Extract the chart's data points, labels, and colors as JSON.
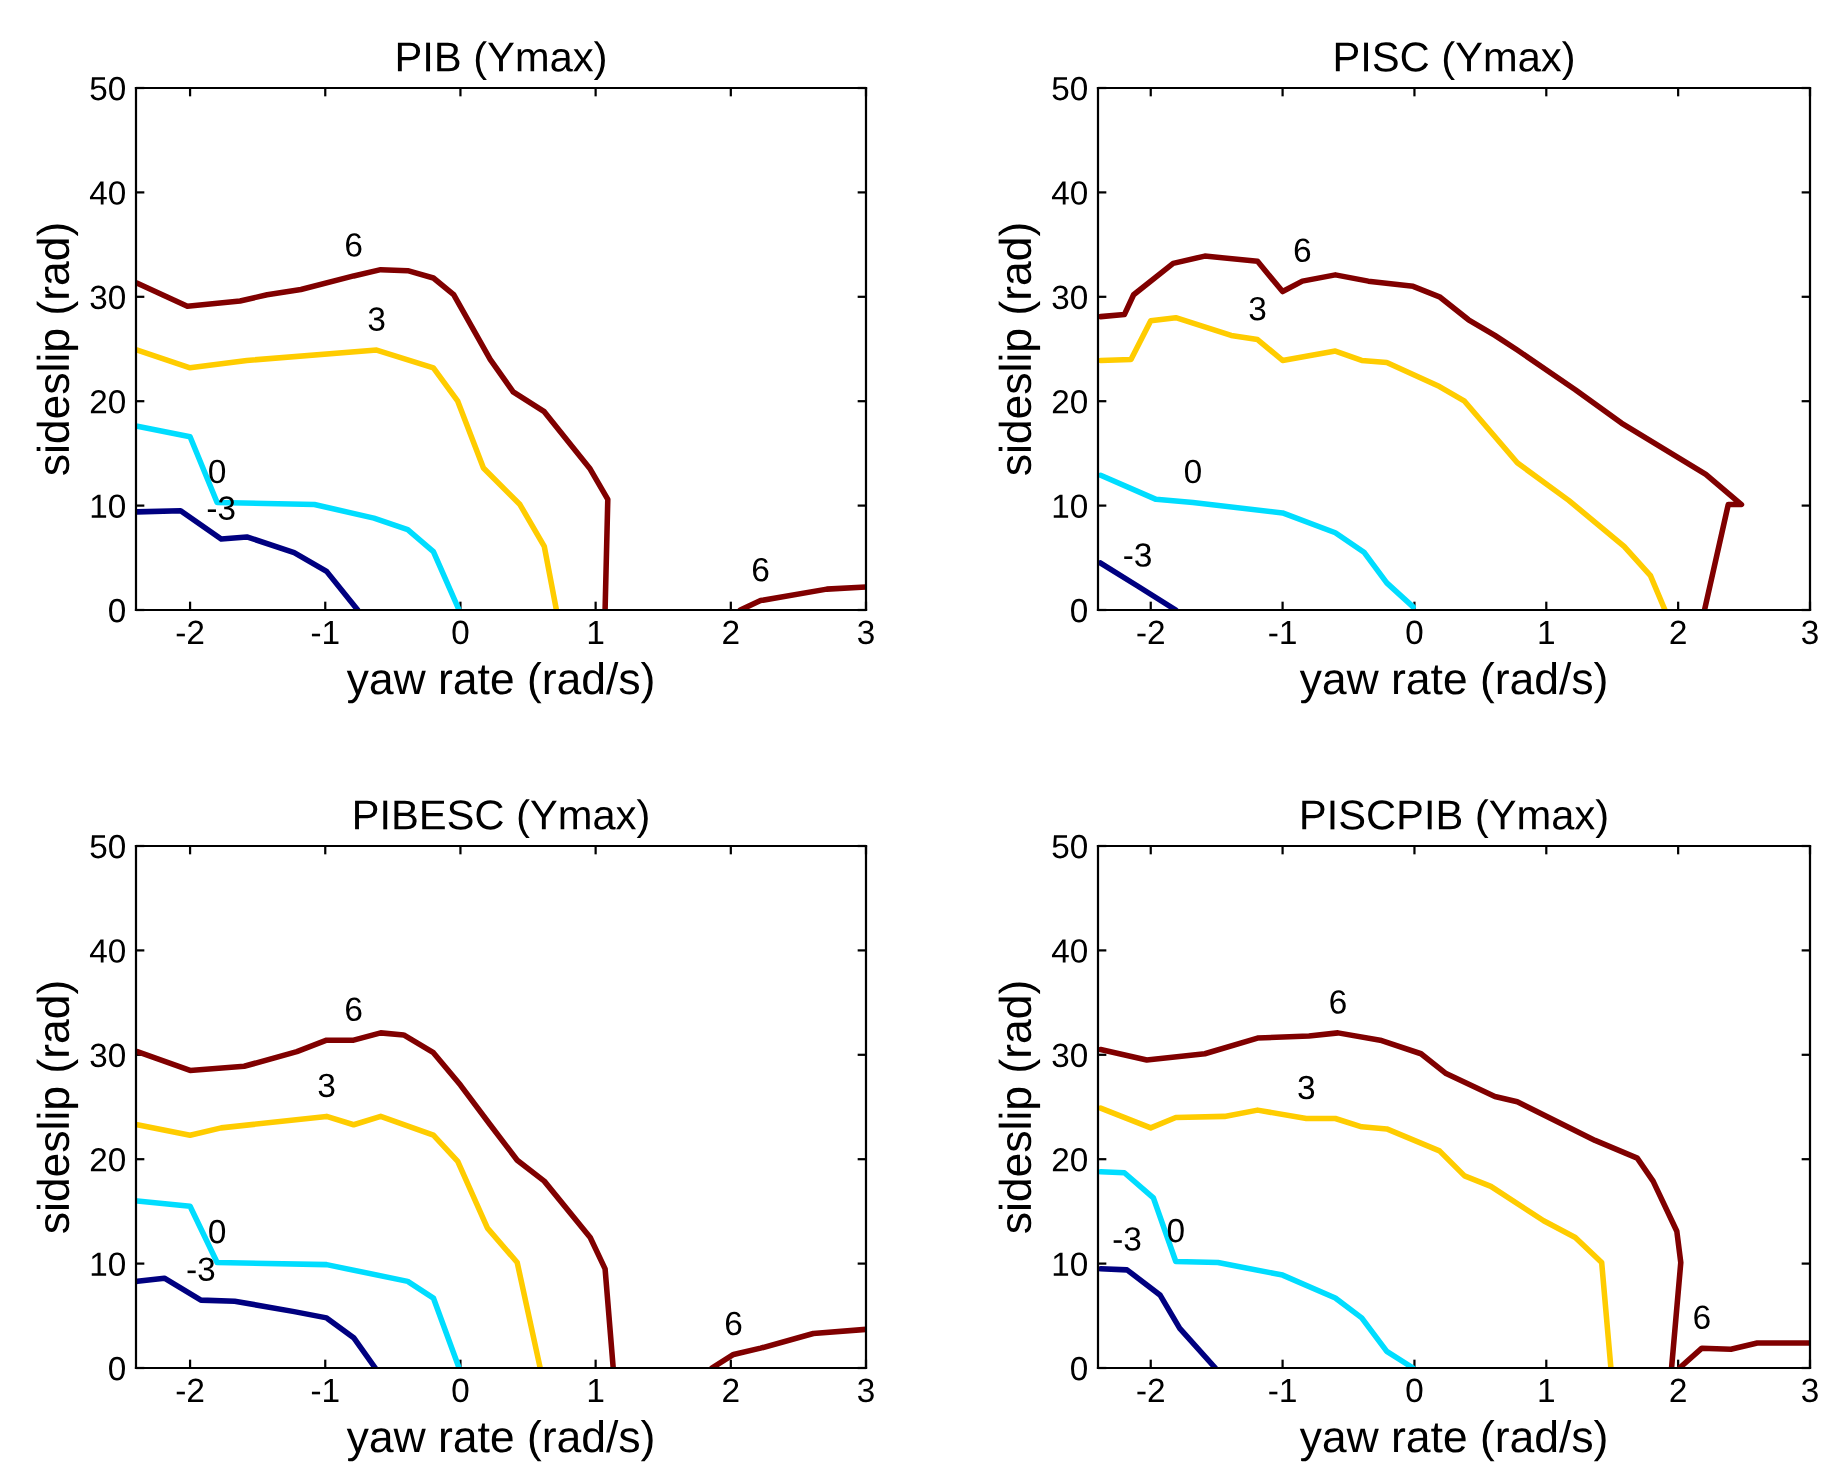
{
  "chart_data": [
    {
      "type": "line",
      "title": "PIB (Ymax)",
      "xlabel": "yaw rate (rad/s)",
      "ylabel": "sideslip (rad)",
      "xlim": [
        -2.4,
        3
      ],
      "xticks": [
        -2,
        -1,
        0,
        1,
        2,
        3
      ],
      "ylim": [
        0,
        50
      ],
      "yticks": [
        0,
        10,
        20,
        30,
        40,
        50
      ],
      "grid": false,
      "legend": false,
      "series": [
        {
          "name": "6",
          "color": "#800000",
          "x": [
            -2.39,
            -2.02,
            -1.63,
            -1.43,
            -1.18,
            -0.79,
            -0.59,
            -0.39,
            -0.2,
            -0.05,
            0.22,
            0.39,
            0.62,
            0.96,
            1.09,
            1.07,
            null,
            2.07,
            2.22,
            2.71,
            3.0
          ],
          "values": [
            31.3,
            29.1,
            29.6,
            30.2,
            30.7,
            32.0,
            32.6,
            32.5,
            31.8,
            30.2,
            24.0,
            20.9,
            19.0,
            13.5,
            10.6,
            0,
            null,
            0,
            0.9,
            2.0,
            2.2
          ]
        },
        {
          "name": "3",
          "color": "#ffcc00",
          "x": [
            -2.39,
            -2.0,
            -1.58,
            -0.62,
            -0.2,
            -0.02,
            0.17,
            0.44,
            0.62,
            0.71
          ],
          "values": [
            24.9,
            23.2,
            23.9,
            24.9,
            23.2,
            20.0,
            13.6,
            10.1,
            6.1,
            0
          ]
        },
        {
          "name": "0",
          "color": "#00ddff",
          "x": [
            -2.39,
            -2.0,
            -1.8,
            -1.08,
            -0.64,
            -0.39,
            -0.2,
            -0.01
          ],
          "values": [
            17.6,
            16.6,
            10.3,
            10.1,
            8.8,
            7.7,
            5.6,
            0
          ]
        },
        {
          "name": "-3",
          "color": "#000080",
          "x": [
            -2.39,
            -2.07,
            -1.77,
            -1.58,
            -1.23,
            -0.99,
            -0.76
          ],
          "values": [
            9.4,
            9.5,
            6.8,
            7.0,
            5.5,
            3.7,
            0
          ]
        }
      ]
    },
    {
      "type": "line",
      "title": "PISC (Ymax)",
      "xlabel": "yaw rate (rad/s)",
      "ylabel": "sideslip (rad)",
      "xlim": [
        -2.4,
        3
      ],
      "xticks": [
        -2,
        -1,
        0,
        1,
        2,
        3
      ],
      "ylim": [
        0,
        50
      ],
      "yticks": [
        0,
        10,
        20,
        30,
        40,
        50
      ],
      "grid": false,
      "legend": false,
      "series": [
        {
          "name": "6",
          "color": "#800000",
          "x": [
            -2.38,
            -2.2,
            -2.13,
            -1.83,
            -1.59,
            -1.19,
            -1.0,
            -0.85,
            -0.6,
            -0.35,
            -0.01,
            0.19,
            0.41,
            0.61,
            0.78,
            1.22,
            1.57,
            2.21,
            2.48,
            2.38,
            2.2
          ],
          "values": [
            28.1,
            28.3,
            30.2,
            33.2,
            33.9,
            33.4,
            30.5,
            31.5,
            32.1,
            31.5,
            31.0,
            30.0,
            27.8,
            26.3,
            24.9,
            21.1,
            17.9,
            13.0,
            10.1,
            10.1,
            0
          ]
        },
        {
          "name": "3",
          "color": "#ffcc00",
          "x": [
            -2.38,
            -2.15,
            -2.0,
            -1.81,
            -1.39,
            -1.19,
            -1.0,
            -0.6,
            -0.4,
            -0.21,
            0.19,
            0.38,
            0.78,
            1.17,
            1.59,
            1.79,
            1.9
          ],
          "values": [
            23.9,
            24.0,
            27.7,
            28.0,
            26.3,
            25.9,
            23.9,
            24.8,
            23.9,
            23.7,
            21.4,
            20.0,
            14.1,
            10.5,
            6.1,
            3.3,
            0
          ]
        },
        {
          "name": "0",
          "color": "#00ddff",
          "x": [
            -2.38,
            -1.96,
            -1.68,
            -1.0,
            -0.6,
            -0.38,
            -0.21,
            -0.01
          ],
          "values": [
            12.9,
            10.6,
            10.3,
            9.3,
            7.4,
            5.5,
            2.6,
            0.3
          ]
        },
        {
          "name": "-3",
          "color": "#000080",
          "x": [
            -2.38,
            -2.1,
            -1.81
          ],
          "values": [
            4.5,
            2.3,
            0
          ]
        }
      ]
    },
    {
      "type": "line",
      "title": "PIBESC (Ymax)",
      "xlabel": "yaw rate (rad/s)",
      "ylabel": "sideslip (rad)",
      "xlim": [
        -2.4,
        3
      ],
      "xticks": [
        -2,
        -1,
        0,
        1,
        2,
        3
      ],
      "ylim": [
        0,
        50
      ],
      "yticks": [
        0,
        10,
        20,
        30,
        40,
        50
      ],
      "grid": false,
      "legend": false,
      "series": [
        {
          "name": "6",
          "color": "#800000",
          "x": [
            -2.39,
            -2.0,
            -1.6,
            -1.21,
            -0.99,
            -0.79,
            -0.59,
            -0.42,
            -0.2,
            0.0,
            0.22,
            0.42,
            0.62,
            0.96,
            1.07,
            1.13,
            null,
            1.86,
            2.02,
            2.22,
            2.61,
            3.0
          ],
          "values": [
            30.3,
            28.5,
            28.9,
            30.3,
            31.4,
            31.4,
            32.1,
            31.9,
            30.2,
            27.1,
            23.3,
            19.9,
            17.9,
            12.5,
            9.5,
            0,
            null,
            0,
            1.3,
            1.9,
            3.3,
            3.7
          ]
        },
        {
          "name": "3",
          "color": "#ffcc00",
          "x": [
            -2.39,
            -2.0,
            -1.77,
            -0.99,
            -0.79,
            -0.59,
            -0.2,
            -0.02,
            0.2,
            0.42,
            0.59
          ],
          "values": [
            23.3,
            22.3,
            23.0,
            24.1,
            23.3,
            24.1,
            22.3,
            19.8,
            13.4,
            10.1,
            0
          ]
        },
        {
          "name": "0",
          "color": "#00ddff",
          "x": [
            -2.39,
            -2.0,
            -1.8,
            -0.99,
            -0.39,
            -0.2,
            -0.01
          ],
          "values": [
            16.0,
            15.5,
            10.1,
            9.9,
            8.3,
            6.7,
            0
          ]
        },
        {
          "name": "-3",
          "color": "#000080",
          "x": [
            -2.39,
            -2.19,
            -1.92,
            -1.67,
            -1.23,
            -0.99,
            -0.79,
            -0.63
          ],
          "values": [
            8.3,
            8.6,
            6.5,
            6.4,
            5.4,
            4.8,
            2.9,
            0
          ]
        }
      ]
    },
    {
      "type": "line",
      "title": "PISCPIB (Ymax)",
      "xlabel": "yaw rate (rad/s)",
      "ylabel": "sideslip (rad)",
      "xlim": [
        -2.4,
        3
      ],
      "xticks": [
        -2,
        -1,
        0,
        1,
        2,
        3
      ],
      "ylim": [
        0,
        50
      ],
      "yticks": [
        0,
        10,
        20,
        30,
        40,
        50
      ],
      "grid": false,
      "legend": false,
      "series": [
        {
          "name": "6",
          "color": "#800000",
          "x": [
            -2.38,
            -2.03,
            -1.59,
            -1.19,
            -0.8,
            -0.58,
            -0.26,
            0.05,
            0.24,
            0.61,
            0.78,
            1.37,
            1.69,
            1.81,
            1.99,
            2.02,
            1.95,
            null,
            2.01,
            2.18,
            2.4,
            2.6,
            3.0
          ],
          "values": [
            30.5,
            29.5,
            30.1,
            31.6,
            31.8,
            32.1,
            31.4,
            30.1,
            28.2,
            26.0,
            25.5,
            21.8,
            20.1,
            17.9,
            13.1,
            10.1,
            0,
            null,
            0,
            1.9,
            1.8,
            2.4,
            2.4
          ]
        },
        {
          "name": "3",
          "color": "#ffcc00",
          "x": [
            -2.38,
            -2.0,
            -1.81,
            -1.44,
            -1.19,
            -0.82,
            -0.6,
            -0.4,
            -0.21,
            0.19,
            0.38,
            0.58,
            0.98,
            1.22,
            1.42,
            1.49
          ],
          "values": [
            24.9,
            23.0,
            24.0,
            24.1,
            24.7,
            23.9,
            23.9,
            23.1,
            22.9,
            20.8,
            18.4,
            17.4,
            14.1,
            12.5,
            10.1,
            0
          ]
        },
        {
          "name": "0",
          "color": "#00ddff",
          "x": [
            -2.38,
            -2.2,
            -1.98,
            -1.81,
            -1.49,
            -1.0,
            -0.6,
            -0.4,
            -0.21,
            -0.01
          ],
          "values": [
            18.8,
            18.7,
            16.3,
            10.2,
            10.1,
            8.9,
            6.7,
            4.8,
            1.6,
            0
          ]
        },
        {
          "name": "-3",
          "color": "#000080",
          "x": [
            -2.38,
            -2.18,
            -1.93,
            -1.78,
            -1.51
          ],
          "values": [
            9.5,
            9.4,
            7.0,
            3.8,
            0
          ]
        }
      ]
    }
  ]
}
